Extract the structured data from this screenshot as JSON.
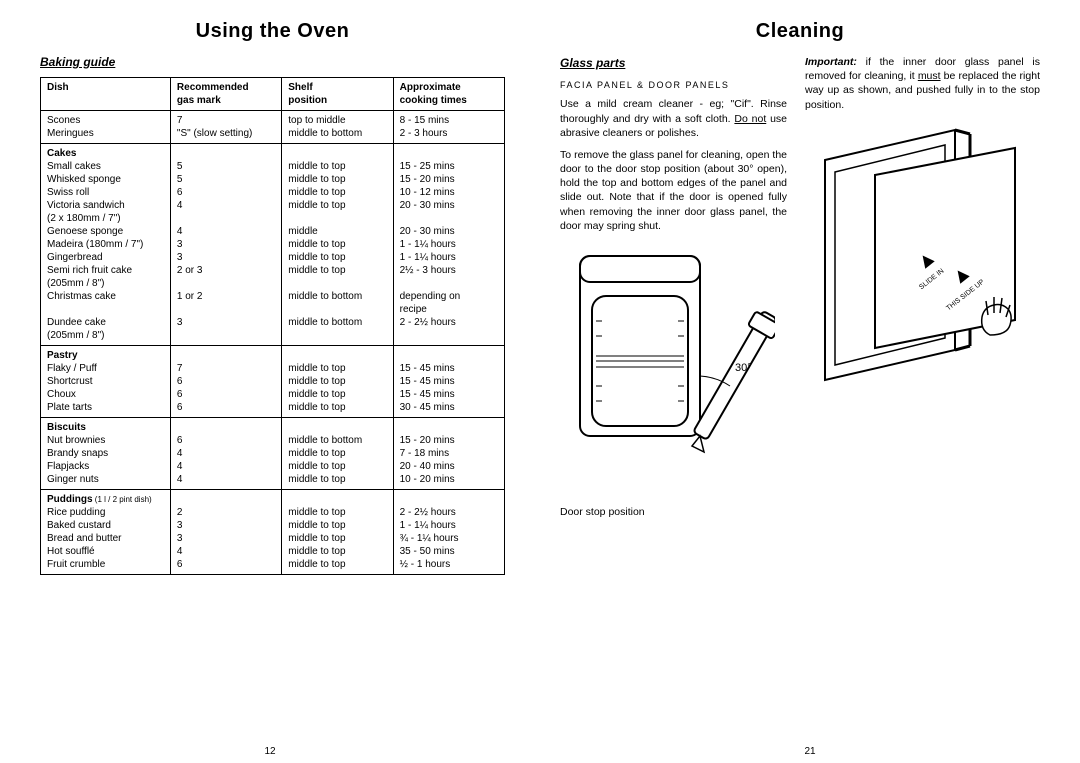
{
  "leftPage": {
    "title": "Using the Oven",
    "section": "Baking guide",
    "headers": {
      "c1a": "Dish",
      "c1b": "",
      "c2a": "Recommended",
      "c2b": "gas mark",
      "c3a": "Shelf",
      "c3b": "position",
      "c4a": "Approximate",
      "c4b": "cooking times"
    },
    "groups": [
      {
        "cat": "",
        "rows": [
          {
            "d": "Scones",
            "g": "7",
            "s": "top to middle",
            "t": "8 - 15 mins"
          },
          {
            "d": "Meringues",
            "g": "\"S\" (slow setting)",
            "s": "middle to bottom",
            "t": "2 - 3 hours"
          }
        ]
      },
      {
        "cat": "Cakes",
        "rows": [
          {
            "d": "Small cakes",
            "g": "5",
            "s": "middle to top",
            "t": "15 - 25 mins"
          },
          {
            "d": "Whisked sponge",
            "g": "5",
            "s": "middle to top",
            "t": "15 - 20 mins"
          },
          {
            "d": "Swiss roll",
            "g": "6",
            "s": "middle to top",
            "t": "10 - 12 mins"
          },
          {
            "d": "Victoria sandwich",
            "g": "4",
            "s": "middle to top",
            "t": "20 - 30 mins"
          },
          {
            "d": "(2 x 180mm / 7\")",
            "g": "",
            "s": "",
            "t": ""
          },
          {
            "d": "Genoese sponge",
            "g": "4",
            "s": "middle",
            "t": "20 - 30 mins"
          },
          {
            "d": "Madeira (180mm / 7\")",
            "g": "3",
            "s": "middle to top",
            "t": "1 - 1¼ hours"
          },
          {
            "d": "Gingerbread",
            "g": "3",
            "s": "middle to top",
            "t": "1 - 1¼ hours"
          },
          {
            "d": "Semi rich fruit cake",
            "g": "2 or 3",
            "s": "middle to top",
            "t": "2½ - 3 hours"
          },
          {
            "d": "(205mm / 8\")",
            "g": "",
            "s": "",
            "t": ""
          },
          {
            "d": "Christmas cake",
            "g": "1 or 2",
            "s": "middle to bottom",
            "t": "depending on"
          },
          {
            "d": "",
            "g": "",
            "s": "",
            "t": "recipe"
          },
          {
            "d": "Dundee cake",
            "g": "3",
            "s": "middle to bottom",
            "t": "2 - 2½ hours"
          },
          {
            "d": "(205mm / 8\")",
            "g": "",
            "s": "",
            "t": ""
          }
        ]
      },
      {
        "cat": "Pastry",
        "rows": [
          {
            "d": "Flaky / Puff",
            "g": "7",
            "s": "middle to top",
            "t": "15 - 45 mins"
          },
          {
            "d": "Shortcrust",
            "g": "6",
            "s": "middle to top",
            "t": "15 - 45 mins"
          },
          {
            "d": "Choux",
            "g": "6",
            "s": "middle to top",
            "t": "15 - 45 mins"
          },
          {
            "d": "Plate tarts",
            "g": "6",
            "s": "middle to top",
            "t": "30 - 45 mins"
          }
        ]
      },
      {
        "cat": "Biscuits",
        "rows": [
          {
            "d": "Nut brownies",
            "g": "6",
            "s": "middle to bottom",
            "t": "15 - 20 mins"
          },
          {
            "d": "Brandy snaps",
            "g": "4",
            "s": "middle to top",
            "t": "7 - 18 mins"
          },
          {
            "d": "Flapjacks",
            "g": "4",
            "s": "middle to top",
            "t": "20 - 40 mins"
          },
          {
            "d": "Ginger nuts",
            "g": "4",
            "s": "middle to top",
            "t": "10 - 20 mins"
          }
        ]
      },
      {
        "cat": "Puddings",
        "catnote": "(1 l / 2 pint dish)",
        "rows": [
          {
            "d": "Rice pudding",
            "g": "2",
            "s": "middle to top",
            "t": "2 - 2½ hours"
          },
          {
            "d": "Baked custard",
            "g": "3",
            "s": "middle to top",
            "t": "1 - 1¼ hours"
          },
          {
            "d": "Bread and butter",
            "g": "3",
            "s": "middle to top",
            "t": "¾ - 1¼ hours"
          },
          {
            "d": "Hot soufflé",
            "g": "4",
            "s": "middle to top",
            "t": "35 - 50 mins"
          },
          {
            "d": "Fruit crumble",
            "g": "6",
            "s": "middle to top",
            "t": "½ - 1 hours"
          }
        ]
      }
    ],
    "pageNum": "12"
  },
  "rightPage": {
    "title": "Cleaning",
    "section": "Glass parts",
    "sub": "FACIA PANEL & DOOR PANELS",
    "p1a": "Use a mild cream cleaner - eg; \"Cif\". Rinse thoroughly and dry with a soft cloth. ",
    "p1u": "Do not",
    "p1b": " use abrasive cleaners or polishes.",
    "p2": "To remove the glass panel for cleaning, open the door to the door stop position (about 30° open), hold the top and bottom edges of the panel and slide out. Note that if the door is opened fully when removing the inner door glass panel, the door may spring shut.",
    "p3a": "Important:",
    "p3b": " if the inner door glass panel is removed for cleaning, it ",
    "p3u": "must",
    "p3c": " be replaced the right way up as shown, and pushed fully in to the stop position.",
    "figcap": "Door stop position",
    "angle": "30°",
    "slide1": "SLIDE IN",
    "slide2": "THIS SIDE UP",
    "pageNum": "21"
  },
  "style": {
    "text_color": "#000000",
    "bg_color": "#ffffff",
    "border_color": "#000000",
    "h1_fontsize": 20,
    "h2_fontsize": 12,
    "body_fontsize": 10.5,
    "table_fontsize": 10
  }
}
